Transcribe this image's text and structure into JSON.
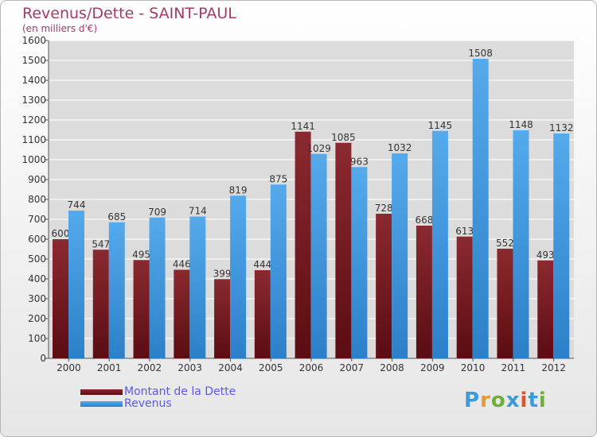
{
  "chart_title": "Revenus/Dette - SAINT-PAUL",
  "chart_subtitle": "(en milliers d'€)",
  "brand": {
    "name": "Proxiti",
    "letters": [
      {
        "ch": "P",
        "color": "#3c9ad6"
      },
      {
        "ch": "r",
        "color": "#e69a2e"
      },
      {
        "ch": "o",
        "color": "#6fb03a"
      },
      {
        "ch": "x",
        "color": "#3c9ad6"
      },
      {
        "ch": "i",
        "color": "#d6572f"
      },
      {
        "ch": "t",
        "color": "#3c9ad6"
      },
      {
        "ch": "i",
        "color": "#6fb03a"
      }
    ]
  },
  "colors": {
    "dette": "#7a1e23",
    "revenus": "#3f97dd",
    "grid": "#ffffff",
    "plot_bg": "#dcdcdc"
  },
  "chart_data": {
    "type": "bar",
    "title": "Revenus/Dette - SAINT-PAUL",
    "subtitle": "(en milliers d'€)",
    "categories": [
      "2000",
      "2001",
      "2002",
      "2003",
      "2004",
      "2005",
      "2006",
      "2007",
      "2008",
      "2009",
      "2010",
      "2011",
      "2012"
    ],
    "series": [
      {
        "name": "Montant de la Dette",
        "values": [
          600,
          547,
          495,
          446,
          399,
          444,
          1141,
          1085,
          728,
          668,
          613,
          552,
          493
        ]
      },
      {
        "name": "Revenus",
        "values": [
          744,
          685,
          709,
          714,
          819,
          875,
          1029,
          963,
          1032,
          1145,
          1508,
          1148,
          1132
        ]
      }
    ],
    "ylim": [
      0,
      1600
    ],
    "yticks": [
      0,
      100,
      200,
      300,
      400,
      500,
      600,
      700,
      800,
      900,
      1000,
      1100,
      1200,
      1300,
      1400,
      1500,
      1600
    ],
    "grid": true,
    "legend_position": "bottom-left"
  }
}
